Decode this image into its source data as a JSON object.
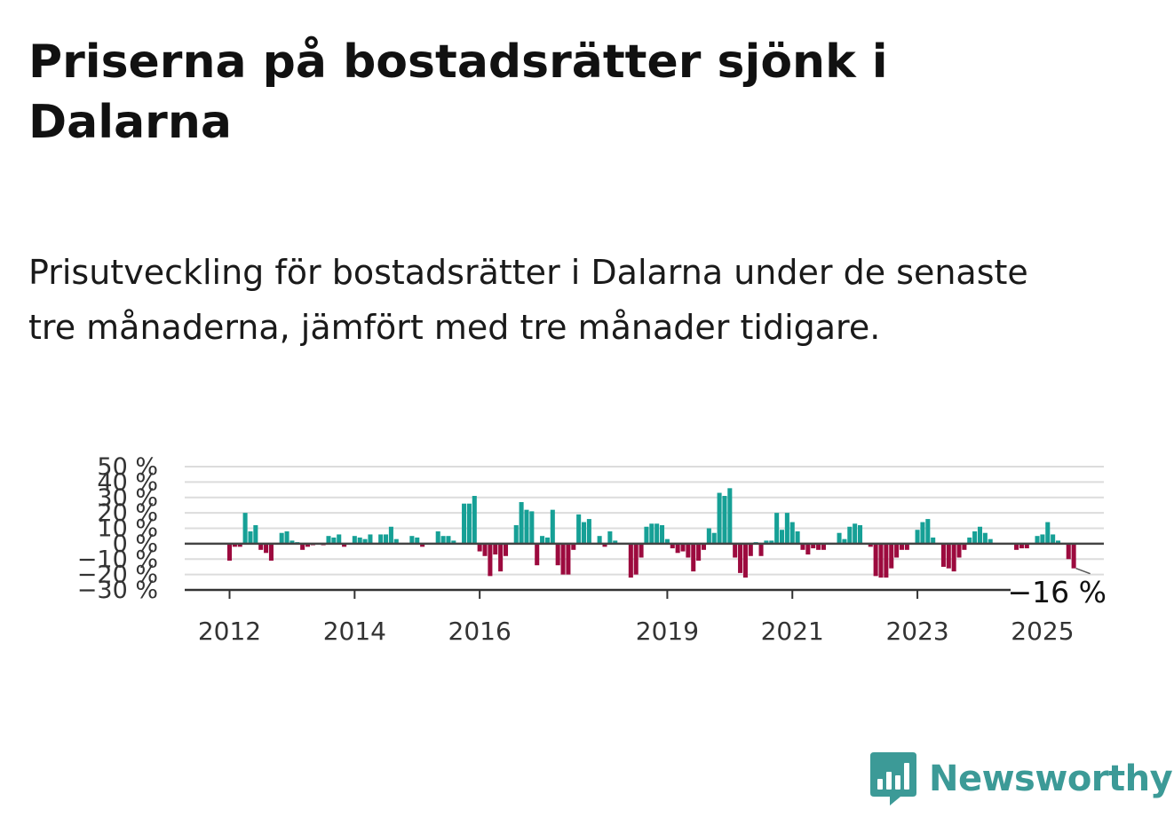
{
  "title": "Priserna på bostadsrätter sjönk i Dalarna",
  "subtitle": "Prisutveckling för bostadsrätter i Dalarna under de senaste tre månaderna, jämfört med tre månader tidigare.",
  "brand": {
    "name": "Newsworthy",
    "color": "#3c9a97"
  },
  "chart_data": {
    "type": "bar",
    "frequency": "monthly",
    "start": "2012-01",
    "end": "2025-04",
    "ylim": [
      -30,
      50
    ],
    "yticks": [
      "−30 %",
      "−20 %",
      "−10 %",
      "0 %",
      "10 %",
      "20 %",
      "30 %",
      "40 %",
      "50 %"
    ],
    "xticks": [
      "2012",
      "2014",
      "2016",
      "2019",
      "2021",
      "2023",
      "2025"
    ],
    "colors": {
      "positive": "#16a096",
      "negative": "#9c0a3e"
    },
    "last_value_label": "−16 %",
    "values": [
      -11,
      -2,
      -2,
      20,
      8,
      12,
      -4,
      -6,
      -11,
      0,
      7,
      8,
      2,
      1,
      -4,
      -2,
      -1,
      0,
      -1,
      5,
      4,
      6,
      -2,
      0,
      5,
      4,
      3,
      6,
      0,
      6,
      6,
      11,
      3,
      0,
      0,
      5,
      4,
      -2,
      0,
      0,
      8,
      5,
      5,
      2,
      0,
      26,
      26,
      31,
      -5,
      -8,
      -21,
      -7,
      -18,
      -8,
      0,
      12,
      27,
      22,
      21,
      -14,
      5,
      4,
      22,
      -14,
      -20,
      -20,
      -4,
      19,
      14,
      16,
      0,
      5,
      -2,
      8,
      2,
      0,
      0,
      -22,
      -20,
      -9,
      11,
      13,
      13,
      12,
      3,
      -3,
      -6,
      -5,
      -9,
      -18,
      -11,
      -4,
      10,
      7,
      33,
      31,
      36,
      -9,
      -19,
      -22,
      -8,
      1,
      -8,
      2,
      2,
      20,
      9,
      20,
      14,
      8,
      -4,
      -7,
      -3,
      -4,
      -4,
      0,
      0,
      7,
      3,
      11,
      13,
      12,
      0,
      -2,
      -21,
      -22,
      -22,
      -16,
      -9,
      -4,
      -4,
      0,
      9,
      14,
      16,
      4,
      0,
      -15,
      -16,
      -18,
      -9,
      -4,
      4,
      8,
      11,
      7,
      3,
      0,
      0,
      0,
      0,
      -4,
      -3,
      -3,
      0,
      5,
      6,
      14,
      6,
      2,
      0,
      -10,
      -16
    ]
  }
}
